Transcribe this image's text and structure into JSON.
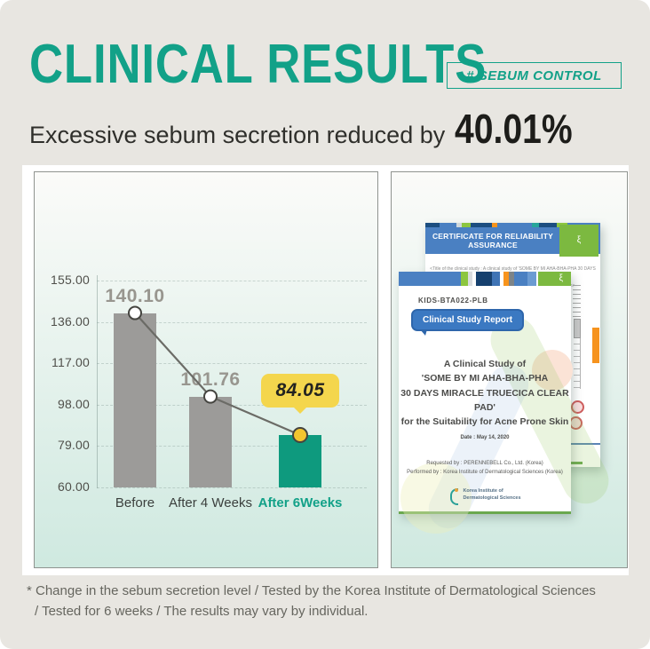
{
  "page": {
    "title": "CLINICAL RESULTS",
    "badge": "# SEBUM CONTROL",
    "subtitle_prefix": "Excessive sebum secretion reduced by",
    "subtitle_value": "40.01%",
    "footnote_line1": "* Change in the sebum secretion level / Tested by the Korea Institute of Dermatological Sciences",
    "footnote_line2": "/ Tested for 6 weeks / The results may vary by individual."
  },
  "colors": {
    "accent_teal": "#12a188",
    "bar_gray": "#9c9b99",
    "bar_teal": "#0e9a7e",
    "callout_yellow": "#f4d64d",
    "page_background": "#e8e6e1"
  },
  "chart_data": {
    "type": "bar",
    "title": "",
    "xlabel": "",
    "ylabel": "",
    "categories": [
      "Before",
      "After 4 Weeks",
      "After 6Weeks"
    ],
    "values": [
      140.1,
      101.76,
      84.05
    ],
    "value_labels": [
      "140.10",
      "101.76",
      "84.05"
    ],
    "yticks": [
      "155.00",
      "136.00",
      "117.00",
      "98.00",
      "79.00",
      "60.00"
    ],
    "ytick_values": [
      155,
      136,
      117,
      98,
      79,
      60
    ],
    "ylim": [
      60,
      155
    ],
    "grid": "horizontal-dashed",
    "legend": "none",
    "overlay_line": true,
    "highlight_index": 2,
    "callout_label": "84.05",
    "bar_colors": [
      "#9c9b99",
      "#9c9b99",
      "#0e9a7e"
    ],
    "line_color": "#6b6b66",
    "marker_highlight": "#f3c52f"
  },
  "documents": {
    "certificate": {
      "header": "CERTIFICATE FOR RELIABILITY ASSURANCE",
      "subtext_line1": "<Title of the clinical study : A clinical study of 'SOME BY MI AHA-BHA-PHA 30 DAYS MIRACLE",
      "subtext_line2": "TRUECICA CLEAR PAD' for the suitability for acne prone skin>",
      "dna_glyph": "ξ",
      "strip": [
        [
          "#1c4e80",
          8
        ],
        [
          "#4a80c2",
          10
        ],
        [
          "#cfd8dc",
          3
        ],
        [
          "#8cc63f",
          5
        ],
        [
          "#1c4e80",
          12
        ],
        [
          "#f7941d",
          3
        ],
        [
          "#4a80c2",
          20
        ],
        [
          "#26a69a",
          4
        ],
        [
          "#1c4e80",
          10
        ],
        [
          "#8cc63f",
          6
        ],
        [
          "#4a80c2",
          19
        ]
      ]
    },
    "report": {
      "code": "KIDS-BTA022-PLB",
      "tag": "Clinical Study Report",
      "title_line1": "A Clinical Study of",
      "title_line2": "'SOME BY MI AHA-BHA-PHA",
      "title_line3": "30 DAYS MIRACLE TRUECICA CLEAR PAD'",
      "title_line4": "for the Suitability for Acne Prone Skin",
      "date": "Date : May 14, 2020",
      "requested": "Requested by : PERENNEBELL Co., Ltd. (Korea)",
      "performed": "Performed by : Korea Institute of Dermatological Sciences (Korea)",
      "logo_line1": "Korea Institute of",
      "logo_line2": "Dermatological Sciences",
      "dna_glyph": "ξ",
      "strip": [
        [
          "#4a80c2",
          36
        ],
        [
          "#8cc63f",
          4
        ],
        [
          "#d9dcdf",
          3
        ],
        [
          "#ffffff",
          2
        ],
        [
          "#16406e",
          9
        ],
        [
          "#3f74b5",
          5
        ],
        [
          "#ffffff",
          2
        ],
        [
          "#f7941d",
          3
        ],
        [
          "#7d8488",
          3
        ],
        [
          "#4a80c2",
          8
        ],
        [
          "#6b9bd2",
          5
        ],
        [
          "#ffffff",
          1
        ],
        [
          "#7cb940",
          19
        ]
      ]
    }
  }
}
